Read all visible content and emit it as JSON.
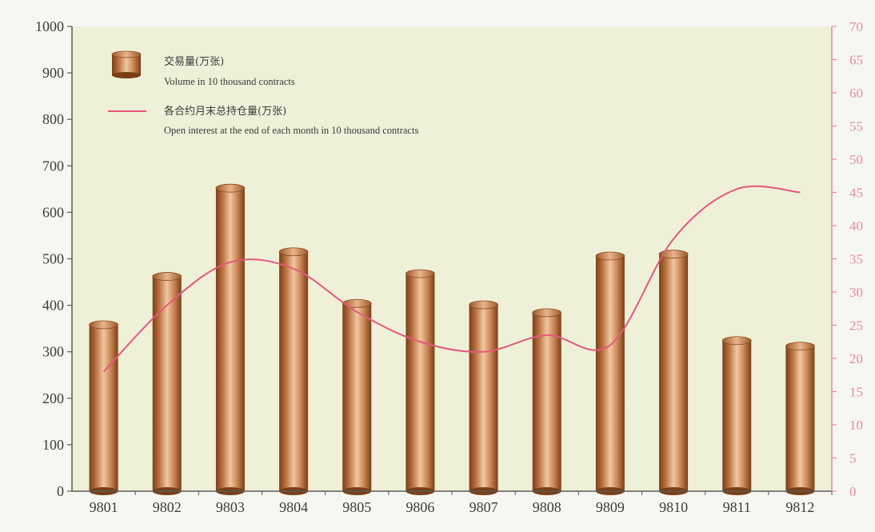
{
  "chart_data": {
    "type": "bar",
    "categories": [
      "9801",
      "9802",
      "9803",
      "9804",
      "9805",
      "9806",
      "9807",
      "9808",
      "9809",
      "9810",
      "9811",
      "9812"
    ],
    "series": [
      {
        "name": "交易量(万张) Volume in 10 thousand contracts",
        "axis": "left",
        "type": "bar",
        "values": [
          358,
          462,
          652,
          515,
          404,
          468,
          401,
          384,
          506,
          510,
          324,
          312
        ]
      },
      {
        "name": "各合约月末总持仓量(万张) Open interest at the end of each month in 10 thousand contracts",
        "axis": "right",
        "type": "line",
        "values": [
          18,
          28,
          34.5,
          33.5,
          27,
          22.5,
          21,
          23.5,
          22,
          38,
          45.5,
          45
        ]
      }
    ],
    "ylim_left": [
      0,
      1000
    ],
    "ylim_right": [
      0,
      70
    ],
    "yticks_left": [
      0,
      100,
      200,
      300,
      400,
      500,
      600,
      700,
      800,
      900,
      1000
    ],
    "yticks_right": [
      0,
      5,
      10,
      15,
      20,
      25,
      30,
      35,
      40,
      45,
      50,
      55,
      60,
      65,
      70
    ],
    "legend": {
      "placement": "top-left",
      "volume_cn": "交易量(万张)",
      "volume_en": "Volume in 10 thousand contracts",
      "oi_cn": "各合约月末总持仓量(万张)",
      "oi_en": "Open interest at the end of each month in 10 thousand contracts"
    },
    "colors": {
      "background": "#eff0d8",
      "bar_dark": "#8a4a1c",
      "bar_mid": "#d69466",
      "bar_light": "#f1c7a1",
      "line": "#e4587e",
      "right_axis": "#e58aa6",
      "axis": "#5a5a5a"
    },
    "grid": false
  }
}
